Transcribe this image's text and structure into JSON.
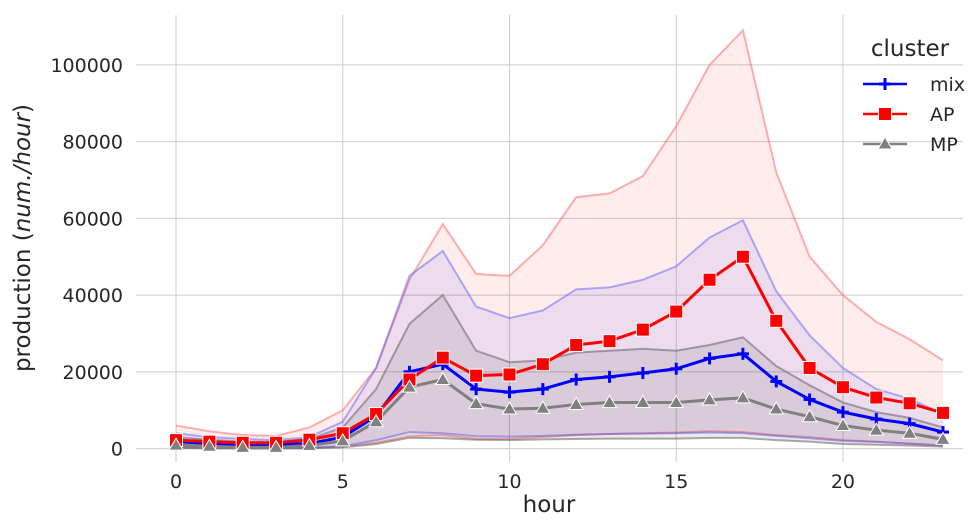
{
  "chart_data": {
    "type": "line",
    "xlabel": "hour",
    "ylabel_prefix": "production (",
    "ylabel_italic": "num./hour",
    "ylabel_suffix": ")",
    "xlim": [
      -1.2,
      23.6
    ],
    "ylim": [
      -3500,
      113000
    ],
    "xticks": [
      0,
      5,
      10,
      15,
      20
    ],
    "yticks": [
      0,
      20000,
      40000,
      60000,
      80000,
      100000
    ],
    "grid": true,
    "legend": {
      "title": "cluster",
      "placement": "top-right"
    },
    "x": [
      0,
      1,
      2,
      3,
      4,
      5,
      6,
      7,
      8,
      9,
      10,
      11,
      12,
      13,
      14,
      15,
      16,
      17,
      18,
      19,
      20,
      21,
      22,
      23
    ],
    "series": [
      {
        "name": "mix",
        "color": "#0000ff",
        "marker": "plus",
        "values": [
          1800,
          1300,
          1000,
          1100,
          1300,
          3000,
          8500,
          20000,
          22000,
          15500,
          14700,
          15500,
          18000,
          18700,
          19700,
          20800,
          23500,
          24700,
          17500,
          12800,
          9500,
          7700,
          6500,
          4300
        ],
        "upper": [
          4000,
          3000,
          2500,
          2200,
          3000,
          7000,
          21000,
          45000,
          51500,
          37000,
          34000,
          36000,
          41500,
          42000,
          44000,
          47500,
          55000,
          59500,
          41000,
          29500,
          21000,
          15500,
          13000,
          9000
        ],
        "lower": [
          300,
          200,
          100,
          100,
          200,
          600,
          2200,
          4300,
          4000,
          3200,
          3100,
          3300,
          3600,
          3800,
          3900,
          4000,
          4200,
          4000,
          3300,
          2700,
          2000,
          1700,
          1300,
          800
        ]
      },
      {
        "name": "AP",
        "color": "#ff0000",
        "marker": "square",
        "values": [
          2200,
          1800,
          1500,
          1500,
          2300,
          4000,
          9000,
          18000,
          23700,
          19000,
          19300,
          22000,
          27000,
          28000,
          31000,
          35700,
          44000,
          50000,
          33300,
          21000,
          16000,
          13300,
          11800,
          9300
        ],
        "upper": [
          6000,
          4500,
          3500,
          3300,
          5500,
          10000,
          21000,
          44000,
          58500,
          45500,
          45000,
          53000,
          65500,
          66500,
          71000,
          84000,
          100000,
          109000,
          72000,
          50000,
          40000,
          33000,
          28500,
          23000
        ],
        "lower": [
          300,
          200,
          100,
          100,
          200,
          500,
          1500,
          3200,
          3500,
          2500,
          2500,
          3000,
          3500,
          3800,
          4000,
          4200,
          4500,
          4300,
          3500,
          3000,
          2200,
          1800,
          1300,
          800
        ]
      },
      {
        "name": "MP",
        "color": "#808080",
        "marker": "triangle",
        "values": [
          900,
          600,
          300,
          300,
          800,
          2000,
          7000,
          16000,
          18000,
          11700,
          10300,
          10500,
          11500,
          12000,
          12000,
          12000,
          12700,
          13200,
          10300,
          8300,
          6000,
          4800,
          4000,
          2400
        ],
        "upper": [
          3000,
          2300,
          1800,
          1700,
          2500,
          5500,
          15500,
          32500,
          40000,
          25500,
          22500,
          23000,
          25000,
          25500,
          26000,
          25500,
          27000,
          29000,
          21500,
          16500,
          12000,
          9500,
          8000,
          5500
        ],
        "lower": [
          100,
          50,
          0,
          0,
          50,
          300,
          1200,
          2800,
          2700,
          2300,
          2200,
          2400,
          2500,
          2600,
          2600,
          2600,
          2800,
          2800,
          2200,
          1800,
          1200,
          1000,
          800,
          500
        ]
      }
    ]
  }
}
